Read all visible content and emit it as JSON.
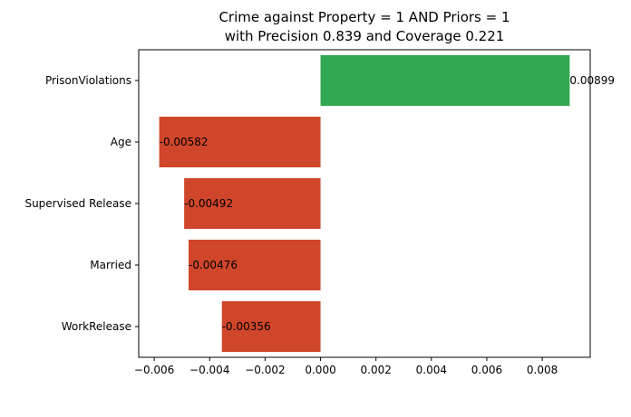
{
  "chart_data": {
    "type": "bar",
    "orientation": "horizontal",
    "title": [
      "Crime against Property = 1 AND Priors = 1",
      "with Precision 0.839 and Coverage 0.221"
    ],
    "categories": [
      "PrisonViolations",
      "Age",
      "Supervised Release",
      "Married",
      "WorkRelease"
    ],
    "values": [
      0.00899,
      -0.00582,
      -0.00492,
      -0.00476,
      -0.00356
    ],
    "data_labels": [
      "0.00899",
      "-0.00582",
      "-0.00492",
      "-0.00476",
      "-0.00356"
    ],
    "xlim": [
      -0.00656,
      0.00973
    ],
    "x_ticks": [
      -0.006,
      -0.004,
      -0.002,
      0.0,
      0.002,
      0.004,
      0.006,
      0.008
    ],
    "x_tick_labels": [
      "−0.006",
      "−0.004",
      "−0.002",
      "0.000",
      "0.002",
      "0.004",
      "0.006",
      "0.008"
    ],
    "xlabel": "",
    "ylabel": "",
    "grid": false,
    "legend": "none",
    "colors": {
      "positive": "#33a852",
      "negative": "#d0462a",
      "axis": "#000000"
    }
  }
}
